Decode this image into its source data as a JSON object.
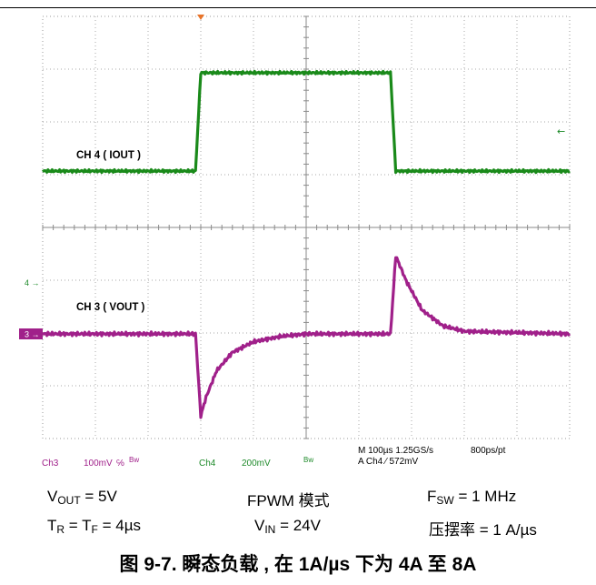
{
  "chart_data": {
    "type": "line",
    "title": "",
    "x_range_us": [
      0,
      1000
    ],
    "divisions": {
      "horizontal": 10,
      "vertical": 8
    },
    "grid": true,
    "series": [
      {
        "name": "CH 4 ( IOUT )",
        "color": "#1a8a1a",
        "units": "A",
        "x": [
          0,
          290,
          300,
          660,
          670,
          1000
        ],
        "values": [
          4,
          4,
          8,
          8,
          4,
          4
        ]
      },
      {
        "name": "CH 3 ( VOUT )",
        "color": "#a0208a",
        "units": "mV",
        "x": [
          0,
          290,
          300,
          310,
          330,
          360,
          400,
          450,
          500,
          640,
          660,
          670,
          690,
          720,
          760,
          800,
          1000
        ],
        "values": [
          0,
          0,
          -155,
          -120,
          -70,
          -35,
          -15,
          -5,
          0,
          0,
          0,
          148,
          100,
          45,
          15,
          5,
          0
        ]
      }
    ],
    "markers": {
      "channel3_label": "3",
      "channel4_label": "4",
      "trigger_arrow": "←"
    },
    "readout": {
      "ch3_name": "Ch3",
      "ch3_scale": "100mV",
      "ch3_coupling": "℅",
      "ch3_bw": "Bw",
      "ch4_name": "Ch4",
      "ch4_scale": "200mV",
      "ch4_bw": "Bw",
      "time_line": "M 100µs 1.25GS/s",
      "rate": "800ps/pt",
      "trigger_line": "A  Ch4  ⁄  572mV"
    }
  },
  "params": {
    "vout": {
      "main": "V",
      "sub": "OUT",
      "rest": " = 5V"
    },
    "mode": "FPWM 模式",
    "fsw": {
      "main": "F",
      "sub": "SW",
      "rest": " = 1 MHz"
    },
    "tr": {
      "main": "T",
      "sub": "R",
      "mid": " = T",
      "sub2": "F",
      "rest": " = 4µs"
    },
    "vin": {
      "main": "V",
      "sub": "IN",
      "rest": " = 24V"
    },
    "slew": "压摆率 = 1 A/µs"
  },
  "caption": "图 9-7. 瞬态负载 , 在 1A/µs 下为 4A 至 8A"
}
